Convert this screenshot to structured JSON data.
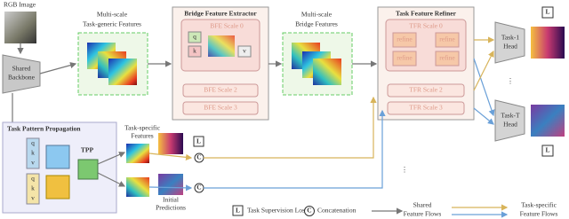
{
  "inputs": {
    "image_label": "RGB Image",
    "backbone_lines": [
      "Shared",
      "Backbone"
    ]
  },
  "generic_features": {
    "lines": [
      "Multi-scale",
      "Task-generic Features"
    ]
  },
  "bfe": {
    "title": "Bridge Feature Extractor",
    "scale0": "BFE Scale 0",
    "q": "q",
    "k": "k",
    "v": "v",
    "scale2": "BFE Scale 2",
    "scale3": "BFE Scale 3"
  },
  "bridge_features": {
    "lines": [
      "Multi-scale",
      "Bridge Features"
    ]
  },
  "tfr": {
    "title": "Task Feature Refiner",
    "scale0": "TFR Scale 0",
    "refine": "refine",
    "scale2": "TFR Scale 2",
    "scale3": "TFR Scale 3"
  },
  "heads": [
    {
      "lines": [
        "Task-1",
        "Head"
      ]
    },
    {
      "lines": [
        "Task-T",
        "Head"
      ]
    }
  ],
  "tpp": {
    "title": "Task Pattern Propagation",
    "block": "TPP",
    "features_lines": [
      "Task-specific",
      "Features"
    ],
    "predictions_lines": [
      "Initial",
      "Predictions"
    ]
  },
  "legend": {
    "loss_icon": "L",
    "loss": "Task Supervision Loss",
    "concat_icon": "C",
    "concat": "Concatenation",
    "shared_lines": [
      "Shared",
      "Feature Flows"
    ],
    "specific_lines": [
      "Task-specific",
      "Feature Flows"
    ]
  }
}
